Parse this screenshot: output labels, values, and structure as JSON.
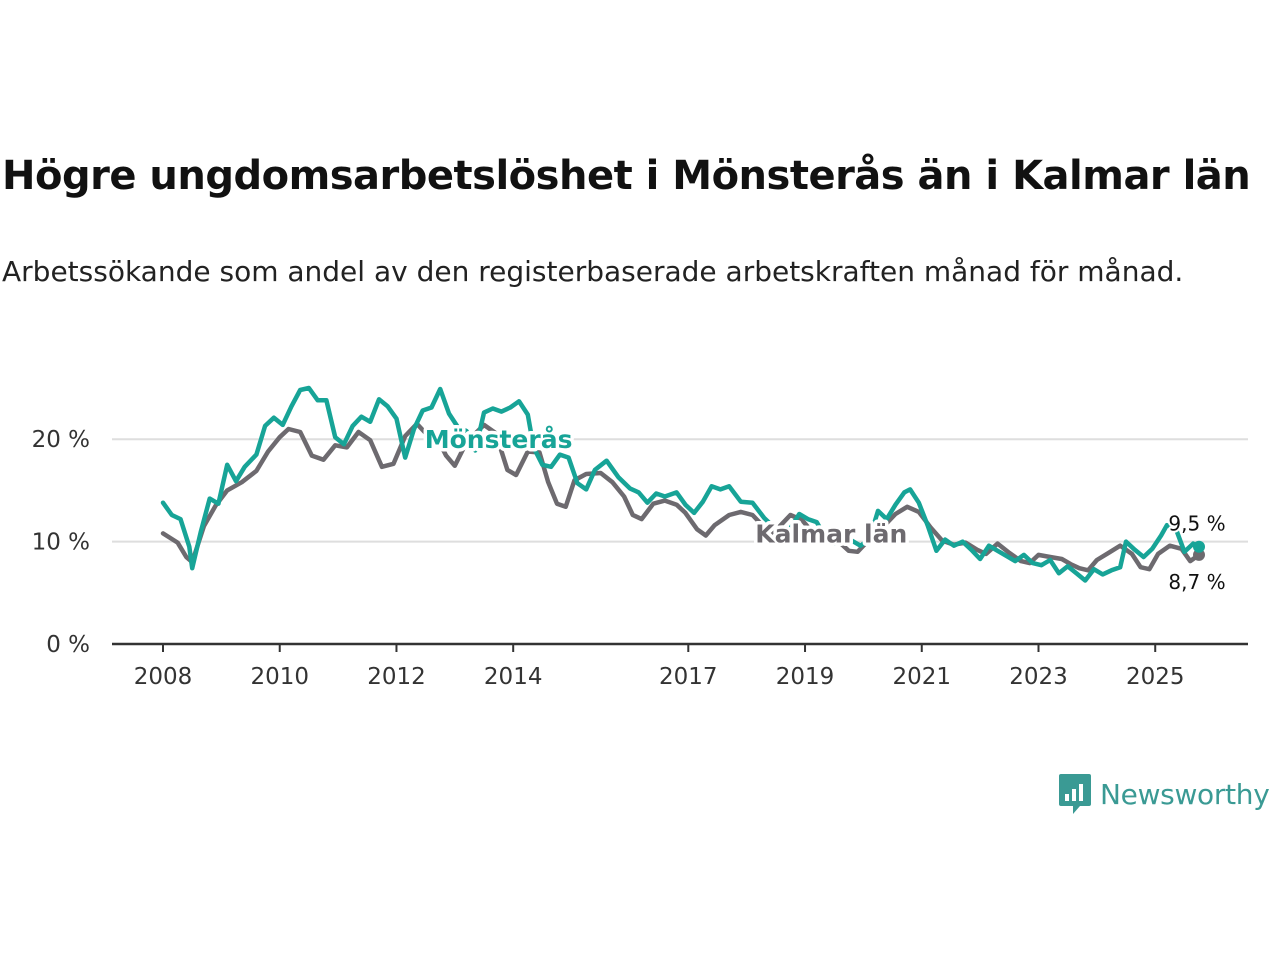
{
  "title": "Högre ungdomsarbetslöshet i Mönsterås än i Kalmar län",
  "subtitle": "Arbetssökande som andel av den registerbaserade arbetskraften månad för månad.",
  "brand": {
    "name": "Newsworthy",
    "color": "#3a9a94"
  },
  "chart_data": {
    "type": "line",
    "title": "Högre ungdomsarbetslöshet i Mönsterås än i Kalmar län",
    "xlabel": "",
    "ylabel": "",
    "xlim": [
      2008.0,
      2025.75
    ],
    "ylim": [
      0,
      25
    ],
    "grid": true,
    "y_ticks": [
      0,
      10,
      20
    ],
    "y_tick_labels": [
      "0 %",
      "10 %",
      "20 %"
    ],
    "x_ticks": [
      2008,
      2010,
      2012,
      2014,
      2017,
      2019,
      2021,
      2023,
      2025
    ],
    "x_tick_labels": [
      "2008",
      "2010",
      "2012",
      "2014",
      "2017",
      "2019",
      "2021",
      "2023",
      "2025"
    ],
    "series": [
      {
        "name": "Kalmar län",
        "color": "#6d6a6f",
        "end_label": "8,7 %",
        "points": [
          [
            2008.0,
            10.8
          ],
          [
            2008.25,
            9.9
          ],
          [
            2008.4,
            8.5
          ],
          [
            2008.5,
            8.0
          ],
          [
            2008.7,
            11.5
          ],
          [
            2008.9,
            13.5
          ],
          [
            2009.1,
            15.0
          ],
          [
            2009.35,
            15.8
          ],
          [
            2009.6,
            16.9
          ],
          [
            2009.8,
            18.8
          ],
          [
            2010.0,
            20.2
          ],
          [
            2010.15,
            21.0
          ],
          [
            2010.35,
            20.7
          ],
          [
            2010.55,
            18.4
          ],
          [
            2010.75,
            18.0
          ],
          [
            2010.95,
            19.4
          ],
          [
            2011.15,
            19.2
          ],
          [
            2011.35,
            20.7
          ],
          [
            2011.55,
            19.9
          ],
          [
            2011.75,
            17.3
          ],
          [
            2011.95,
            17.6
          ],
          [
            2012.15,
            20.3
          ],
          [
            2012.35,
            21.5
          ],
          [
            2012.5,
            20.6
          ],
          [
            2012.7,
            20.1
          ],
          [
            2012.85,
            18.4
          ],
          [
            2013.0,
            17.4
          ],
          [
            2013.2,
            19.7
          ],
          [
            2013.5,
            21.4
          ],
          [
            2013.7,
            20.6
          ],
          [
            2013.9,
            17.0
          ],
          [
            2014.05,
            16.5
          ],
          [
            2014.25,
            18.8
          ],
          [
            2014.45,
            18.7
          ],
          [
            2014.6,
            15.8
          ],
          [
            2014.75,
            13.7
          ],
          [
            2014.9,
            13.4
          ],
          [
            2015.05,
            16.0
          ],
          [
            2015.25,
            16.6
          ],
          [
            2015.5,
            16.7
          ],
          [
            2015.7,
            15.8
          ],
          [
            2015.9,
            14.4
          ],
          [
            2016.05,
            12.6
          ],
          [
            2016.2,
            12.2
          ],
          [
            2016.4,
            13.7
          ],
          [
            2016.6,
            14.0
          ],
          [
            2016.8,
            13.6
          ],
          [
            2016.95,
            12.8
          ],
          [
            2017.15,
            11.2
          ],
          [
            2017.3,
            10.6
          ],
          [
            2017.45,
            11.6
          ],
          [
            2017.7,
            12.6
          ],
          [
            2017.9,
            12.9
          ],
          [
            2018.1,
            12.6
          ],
          [
            2018.3,
            11.4
          ],
          [
            2018.45,
            10.8
          ],
          [
            2018.6,
            11.7
          ],
          [
            2018.75,
            12.6
          ],
          [
            2018.95,
            12.1
          ],
          [
            2019.1,
            11.1
          ],
          [
            2019.3,
            10.0
          ],
          [
            2019.5,
            10.4
          ],
          [
            2019.75,
            9.1
          ],
          [
            2019.9,
            9.0
          ],
          [
            2020.1,
            10.2
          ],
          [
            2020.35,
            11.5
          ],
          [
            2020.55,
            12.7
          ],
          [
            2020.75,
            13.4
          ],
          [
            2020.95,
            12.9
          ],
          [
            2021.15,
            11.4
          ],
          [
            2021.35,
            10.1
          ],
          [
            2021.55,
            9.7
          ],
          [
            2021.75,
            9.9
          ],
          [
            2021.95,
            9.2
          ],
          [
            2022.1,
            8.8
          ],
          [
            2022.3,
            9.8
          ],
          [
            2022.5,
            8.9
          ],
          [
            2022.7,
            8.1
          ],
          [
            2022.85,
            7.9
          ],
          [
            2023.0,
            8.7
          ],
          [
            2023.2,
            8.5
          ],
          [
            2023.4,
            8.3
          ],
          [
            2023.55,
            7.8
          ],
          [
            2023.7,
            7.4
          ],
          [
            2023.85,
            7.2
          ],
          [
            2024.0,
            8.2
          ],
          [
            2024.2,
            8.9
          ],
          [
            2024.4,
            9.6
          ],
          [
            2024.6,
            8.8
          ],
          [
            2024.75,
            7.5
          ],
          [
            2024.9,
            7.3
          ],
          [
            2025.05,
            8.8
          ],
          [
            2025.25,
            9.6
          ],
          [
            2025.45,
            9.3
          ],
          [
            2025.6,
            8.1
          ],
          [
            2025.75,
            8.7
          ]
        ]
      },
      {
        "name": "Mönsterås",
        "color": "#17a497",
        "end_label": "9,5 %",
        "points": [
          [
            2008.0,
            13.8
          ],
          [
            2008.15,
            12.6
          ],
          [
            2008.3,
            12.2
          ],
          [
            2008.45,
            9.5
          ],
          [
            2008.5,
            7.4
          ],
          [
            2008.65,
            11.0
          ],
          [
            2008.8,
            14.2
          ],
          [
            2008.95,
            13.7
          ],
          [
            2009.1,
            17.5
          ],
          [
            2009.25,
            15.9
          ],
          [
            2009.4,
            17.3
          ],
          [
            2009.6,
            18.5
          ],
          [
            2009.75,
            21.3
          ],
          [
            2009.9,
            22.1
          ],
          [
            2010.05,
            21.4
          ],
          [
            2010.2,
            23.2
          ],
          [
            2010.35,
            24.8
          ],
          [
            2010.5,
            25.0
          ],
          [
            2010.65,
            23.8
          ],
          [
            2010.8,
            23.8
          ],
          [
            2010.95,
            20.2
          ],
          [
            2011.1,
            19.5
          ],
          [
            2011.25,
            21.3
          ],
          [
            2011.4,
            22.2
          ],
          [
            2011.55,
            21.7
          ],
          [
            2011.7,
            23.9
          ],
          [
            2011.85,
            23.2
          ],
          [
            2012.0,
            22.0
          ],
          [
            2012.15,
            18.2
          ],
          [
            2012.3,
            21.0
          ],
          [
            2012.45,
            22.8
          ],
          [
            2012.6,
            23.1
          ],
          [
            2012.75,
            24.9
          ],
          [
            2012.9,
            22.5
          ],
          [
            2013.05,
            21.2
          ],
          [
            2013.2,
            20.8
          ],
          [
            2013.35,
            18.9
          ],
          [
            2013.5,
            22.6
          ],
          [
            2013.65,
            23.0
          ],
          [
            2013.8,
            22.7
          ],
          [
            2013.95,
            23.1
          ],
          [
            2014.1,
            23.7
          ],
          [
            2014.25,
            22.4
          ],
          [
            2014.35,
            19.2
          ],
          [
            2014.5,
            17.5
          ],
          [
            2014.65,
            17.3
          ],
          [
            2014.8,
            18.5
          ],
          [
            2014.95,
            18.2
          ],
          [
            2015.1,
            15.7
          ],
          [
            2015.25,
            15.1
          ],
          [
            2015.4,
            17.0
          ],
          [
            2015.6,
            17.9
          ],
          [
            2015.8,
            16.3
          ],
          [
            2016.0,
            15.2
          ],
          [
            2016.15,
            14.8
          ],
          [
            2016.3,
            13.8
          ],
          [
            2016.45,
            14.7
          ],
          [
            2016.6,
            14.4
          ],
          [
            2016.8,
            14.8
          ],
          [
            2016.95,
            13.6
          ],
          [
            2017.1,
            12.8
          ],
          [
            2017.25,
            13.9
          ],
          [
            2017.4,
            15.4
          ],
          [
            2017.55,
            15.1
          ],
          [
            2017.7,
            15.4
          ],
          [
            2017.9,
            13.9
          ],
          [
            2018.1,
            13.8
          ],
          [
            2018.3,
            12.3
          ],
          [
            2018.45,
            11.5
          ],
          [
            2018.6,
            10.3
          ],
          [
            2018.75,
            11.3
          ],
          [
            2018.9,
            12.7
          ],
          [
            2019.05,
            12.2
          ],
          [
            2019.2,
            11.9
          ],
          [
            2019.35,
            10.4
          ],
          [
            2019.5,
            9.8
          ],
          [
            2019.65,
            10.8
          ],
          [
            2019.8,
            10.1
          ],
          [
            2019.95,
            9.6
          ],
          [
            2020.1,
            10.2
          ],
          [
            2020.25,
            13.0
          ],
          [
            2020.4,
            12.2
          ],
          [
            2020.55,
            13.6
          ],
          [
            2020.7,
            14.8
          ],
          [
            2020.8,
            15.1
          ],
          [
            2020.95,
            13.8
          ],
          [
            2021.1,
            11.6
          ],
          [
            2021.25,
            9.1
          ],
          [
            2021.4,
            10.2
          ],
          [
            2021.55,
            9.6
          ],
          [
            2021.7,
            10.0
          ],
          [
            2021.85,
            9.2
          ],
          [
            2022.0,
            8.3
          ],
          [
            2022.15,
            9.6
          ],
          [
            2022.3,
            9.1
          ],
          [
            2022.45,
            8.6
          ],
          [
            2022.6,
            8.1
          ],
          [
            2022.75,
            8.7
          ],
          [
            2022.9,
            7.9
          ],
          [
            2023.05,
            7.7
          ],
          [
            2023.2,
            8.2
          ],
          [
            2023.35,
            6.9
          ],
          [
            2023.5,
            7.6
          ],
          [
            2023.65,
            6.9
          ],
          [
            2023.8,
            6.2
          ],
          [
            2023.95,
            7.3
          ],
          [
            2024.1,
            6.8
          ],
          [
            2024.25,
            7.2
          ],
          [
            2024.4,
            7.5
          ],
          [
            2024.5,
            10.0
          ],
          [
            2024.65,
            9.2
          ],
          [
            2024.8,
            8.5
          ],
          [
            2024.95,
            9.3
          ],
          [
            2025.1,
            10.6
          ],
          [
            2025.2,
            11.6
          ],
          [
            2025.35,
            11.3
          ],
          [
            2025.5,
            9.0
          ],
          [
            2025.65,
            9.8
          ],
          [
            2025.75,
            9.5
          ]
        ]
      }
    ],
    "annotations": [
      {
        "text": "Mönsterås",
        "x": 2013.75,
        "y": 20.0,
        "series": "Mönsterås"
      },
      {
        "text": "Kalmar län",
        "x": 2019.45,
        "y": 10.8,
        "series": "Kalmar län"
      }
    ]
  }
}
